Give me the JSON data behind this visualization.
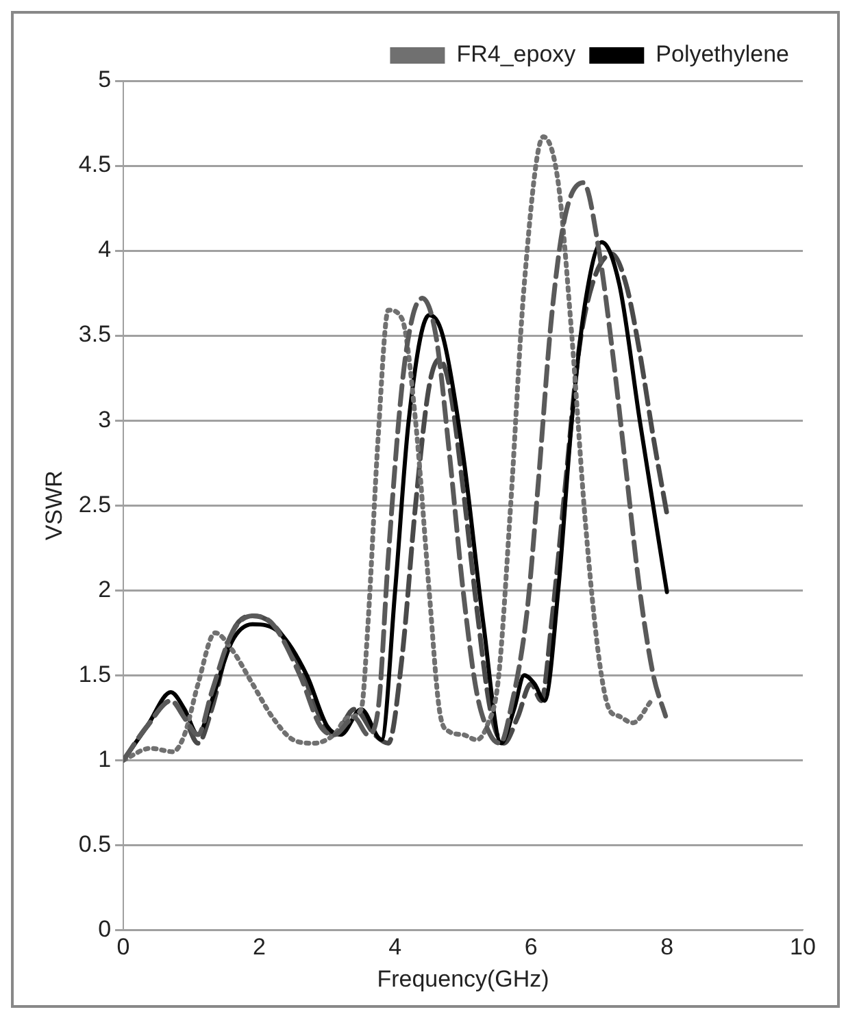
{
  "chart_data": {
    "type": "line",
    "xlabel": "Frequency(GHz)",
    "ylabel": "VSWR",
    "xlim": [
      0,
      10
    ],
    "xticks": [
      0,
      2,
      4,
      6,
      8,
      10
    ],
    "ylim": [
      0,
      5
    ],
    "yticks": [
      0,
      0.5,
      1,
      1.5,
      2,
      2.5,
      3,
      3.5,
      4,
      4.5,
      5
    ],
    "grid": "y",
    "legend": "top right",
    "marker": "none",
    "series": [
      {
        "color": "#5a5a5a",
        "line_style": "dashed",
        "x": [
          0,
          0.35,
          0.7,
          0.9,
          1.1,
          1.3,
          1.6,
          1.9,
          2.2,
          2.6,
          2.9,
          3.1,
          3.4,
          3.6,
          3.75,
          3.9,
          4.1,
          4.25,
          4.4,
          4.6,
          4.8,
          5.0,
          5.2,
          5.4,
          5.55,
          5.7,
          5.94,
          6.1,
          6.3,
          6.5,
          6.77,
          7.0,
          7.2,
          7.4,
          7.6,
          7.8,
          7.98
        ],
        "values": [
          1,
          1.2,
          1.35,
          1.25,
          1.15,
          1.4,
          1.75,
          1.85,
          1.8,
          1.5,
          1.2,
          1.15,
          1.25,
          1.15,
          1.3,
          2.2,
          3.2,
          3.6,
          3.72,
          3.5,
          2.8,
          2.0,
          1.4,
          1.15,
          1.1,
          1.3,
          1.87,
          2.6,
          3.6,
          4.2,
          4.4,
          4.0,
          3.4,
          2.7,
          2.0,
          1.5,
          1.26
        ]
      },
      {
        "name": "FR4_epoxy",
        "color": "#707070",
        "line_style": "dotted",
        "x": [
          0,
          0.4,
          0.73,
          0.9,
          1.1,
          1.35,
          1.6,
          1.9,
          2.2,
          2.5,
          2.8,
          3.1,
          3.3,
          3.5,
          3.6,
          3.75,
          3.9,
          4.1,
          4.3,
          4.5,
          4.65,
          4.79,
          5.0,
          5.2,
          5.35,
          5.52,
          5.7,
          5.9,
          6.18,
          6.4,
          6.6,
          6.8,
          7.0,
          7.15,
          7.29,
          7.5,
          7.77
        ],
        "values": [
          1,
          1.07,
          1.05,
          1.15,
          1.45,
          1.75,
          1.65,
          1.45,
          1.25,
          1.12,
          1.1,
          1.15,
          1.25,
          1.3,
          1.8,
          2.9,
          3.65,
          3.6,
          3.0,
          2.0,
          1.3,
          1.17,
          1.15,
          1.12,
          1.2,
          1.48,
          2.5,
          3.8,
          4.67,
          4.4,
          3.5,
          2.4,
          1.6,
          1.3,
          1.26,
          1.22,
          1.35
        ]
      },
      {
        "name": "Polyethylene",
        "color": "#000000",
        "line_style": "solid",
        "x": [
          0,
          0.35,
          0.7,
          0.9,
          1.1,
          1.3,
          1.6,
          1.9,
          2.3,
          2.7,
          3.0,
          3.2,
          3.5,
          3.8,
          4.0,
          4.2,
          4.5,
          4.7,
          5.0,
          5.3,
          5.56,
          5.75,
          5.9,
          6.05,
          6.2,
          6.4,
          6.6,
          6.8,
          7.04,
          7.3,
          7.6,
          8.0
        ],
        "values": [
          1,
          1.2,
          1.4,
          1.3,
          1.15,
          1.35,
          1.7,
          1.8,
          1.75,
          1.5,
          1.2,
          1.15,
          1.3,
          1.12,
          2.0,
          3.0,
          3.62,
          3.5,
          2.8,
          1.8,
          1.1,
          1.3,
          1.5,
          1.45,
          1.35,
          2.0,
          3.0,
          3.7,
          4.05,
          3.8,
          3.0,
          1.99
        ]
      },
      {
        "color": "#4a4a4a",
        "line_style": "dashed",
        "x": [
          0,
          0.35,
          0.7,
          0.9,
          1.1,
          1.3,
          1.6,
          1.9,
          2.2,
          2.6,
          2.9,
          3.1,
          3.4,
          3.7,
          3.9,
          4.1,
          4.3,
          4.5,
          4.65,
          4.8,
          5.0,
          5.2,
          5.4,
          5.6,
          5.8,
          6.0,
          6.15,
          6.3,
          6.5,
          6.7,
          6.9,
          7.19,
          7.4,
          7.6,
          7.8,
          8.0
        ],
        "values": [
          1,
          1.2,
          1.35,
          1.25,
          1.1,
          1.3,
          1.75,
          1.85,
          1.8,
          1.55,
          1.25,
          1.15,
          1.3,
          1.15,
          1.1,
          1.6,
          2.5,
          3.2,
          3.36,
          3.2,
          2.6,
          1.9,
          1.3,
          1.1,
          1.25,
          1.45,
          1.35,
          1.8,
          2.6,
          3.4,
          3.8,
          3.98,
          3.8,
          3.4,
          2.9,
          2.45
        ]
      }
    ]
  }
}
